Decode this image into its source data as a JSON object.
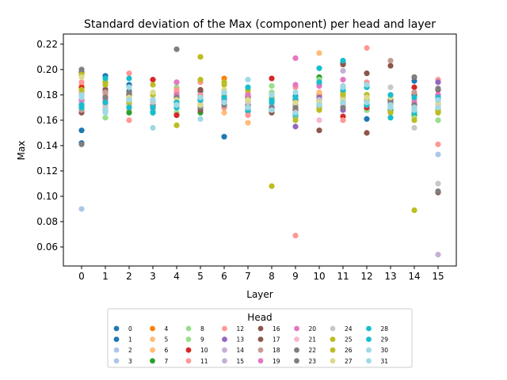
{
  "chart_data": {
    "type": "scatter",
    "title": "Standard deviation of the Max (component) per head and layer",
    "xlabel": "Layer",
    "ylabel": "Max",
    "x_categories": [
      "0",
      "1",
      "2",
      "3",
      "4",
      "5",
      "6",
      "7",
      "8",
      "9",
      "10",
      "11",
      "12",
      "13",
      "14",
      "15"
    ],
    "ylim": [
      0.045,
      0.228
    ],
    "yticks": [
      0.06,
      0.08,
      0.1,
      0.12,
      0.14,
      0.16,
      0.18,
      0.2,
      0.22
    ],
    "ytick_labels": [
      "0.06",
      "0.08",
      "0.10",
      "0.12",
      "0.14",
      "0.16",
      "0.18",
      "0.20",
      "0.22"
    ],
    "grid": false,
    "legend": {
      "title": "Head",
      "placement": "bottom-center, outside plot",
      "ncol": 8
    },
    "series": [
      {
        "name": "0",
        "color": "#1f77b4",
        "values": [
          0.152,
          0.195,
          0.188,
          0.167,
          0.178,
          0.183,
          0.147,
          0.171,
          0.17,
          0.163,
          0.17,
          0.178,
          0.161,
          0.17,
          0.191,
          0.18
        ]
      },
      {
        "name": "1",
        "color": "#1f77b4",
        "values": [
          0.142,
          0.19,
          0.183,
          0.172,
          0.174,
          0.178,
          0.18,
          0.167,
          0.176,
          0.179,
          0.172,
          0.174,
          0.168,
          0.166,
          0.168,
          0.173
        ]
      },
      {
        "name": "2",
        "color": "#aec7e8",
        "values": [
          0.09,
          0.185,
          0.18,
          0.176,
          0.172,
          0.171,
          0.176,
          0.176,
          0.172,
          0.176,
          0.176,
          0.187,
          0.173,
          0.17,
          0.163,
          0.133
        ]
      },
      {
        "name": "3",
        "color": "#aec7e8",
        "values": [
          0.174,
          0.178,
          0.178,
          0.168,
          0.176,
          0.176,
          0.182,
          0.184,
          0.174,
          0.172,
          0.178,
          0.183,
          0.177,
          0.175,
          0.17,
          0.17
        ]
      },
      {
        "name": "4",
        "color": "#ff7f0e",
        "values": [
          0.17,
          0.176,
          0.172,
          0.174,
          0.17,
          0.18,
          0.193,
          0.18,
          0.168,
          0.172,
          0.18,
          0.178,
          0.174,
          0.17,
          0.168,
          0.176
        ]
      },
      {
        "name": "5",
        "color": "#ffbb78",
        "values": [
          0.176,
          0.18,
          0.175,
          0.18,
          0.166,
          0.176,
          0.18,
          0.158,
          0.178,
          0.172,
          0.182,
          0.18,
          0.176,
          0.176,
          0.173,
          0.17
        ]
      },
      {
        "name": "6",
        "color": "#ffbb78",
        "values": [
          0.188,
          0.172,
          0.168,
          0.176,
          0.17,
          0.174,
          0.166,
          0.182,
          0.174,
          0.176,
          0.213,
          0.178,
          0.17,
          0.172,
          0.17,
          0.166
        ]
      },
      {
        "name": "7",
        "color": "#2ca02c",
        "values": [
          0.168,
          0.17,
          0.166,
          0.166,
          0.164,
          0.166,
          0.17,
          0.172,
          0.17,
          0.166,
          0.194,
          0.176,
          0.17,
          0.168,
          0.164,
          0.168
        ]
      },
      {
        "name": "8",
        "color": "#98df8a",
        "values": [
          0.172,
          0.168,
          0.172,
          0.17,
          0.166,
          0.172,
          0.172,
          0.17,
          0.187,
          0.176,
          0.176,
          0.172,
          0.168,
          0.166,
          0.162,
          0.16
        ]
      },
      {
        "name": "9",
        "color": "#98df8a",
        "values": [
          0.178,
          0.162,
          0.176,
          0.17,
          0.186,
          0.178,
          0.176,
          0.176,
          0.182,
          0.164,
          0.192,
          0.176,
          0.172,
          0.178,
          0.17,
          0.166
        ]
      },
      {
        "name": "10",
        "color": "#d62728",
        "values": [
          0.186,
          0.182,
          0.178,
          0.192,
          0.164,
          0.18,
          0.178,
          0.18,
          0.193,
          0.168,
          0.176,
          0.163,
          0.17,
          0.176,
          0.186,
          0.176
        ]
      },
      {
        "name": "11",
        "color": "#ff9896",
        "values": [
          0.19,
          0.176,
          0.197,
          0.174,
          0.184,
          0.18,
          0.17,
          0.164,
          0.174,
          0.069,
          0.174,
          0.16,
          0.217,
          0.172,
          0.176,
          0.141
        ]
      },
      {
        "name": "12",
        "color": "#ff9896",
        "values": [
          0.182,
          0.18,
          0.16,
          0.176,
          0.182,
          0.19,
          0.176,
          0.172,
          0.176,
          0.186,
          0.17,
          0.17,
          0.19,
          0.176,
          0.17,
          0.192
        ]
      },
      {
        "name": "13",
        "color": "#9467bd",
        "values": [
          0.176,
          0.178,
          0.176,
          0.174,
          0.172,
          0.178,
          0.174,
          0.174,
          0.176,
          0.155,
          0.178,
          0.168,
          0.18,
          0.174,
          0.168,
          0.19
        ]
      },
      {
        "name": "14",
        "color": "#c5b0d5",
        "values": [
          0.172,
          0.176,
          0.172,
          0.17,
          0.172,
          0.172,
          0.172,
          0.172,
          0.172,
          0.172,
          0.172,
          0.199,
          0.172,
          0.172,
          0.172,
          0.172
        ]
      },
      {
        "name": "15",
        "color": "#c5b0d5",
        "values": [
          0.174,
          0.174,
          0.174,
          0.172,
          0.174,
          0.176,
          0.176,
          0.17,
          0.17,
          0.17,
          0.17,
          0.172,
          0.174,
          0.172,
          0.17,
          0.054
        ]
      },
      {
        "name": "16",
        "color": "#8c564b",
        "values": [
          0.166,
          0.168,
          0.172,
          0.17,
          0.18,
          0.168,
          0.174,
          0.17,
          0.166,
          0.174,
          0.152,
          0.204,
          0.15,
          0.203,
          0.18,
          0.103
        ]
      },
      {
        "name": "17",
        "color": "#8c564b",
        "values": [
          0.198,
          0.184,
          0.18,
          0.174,
          0.178,
          0.184,
          0.182,
          0.178,
          0.168,
          0.176,
          0.172,
          0.205,
          0.197,
          0.176,
          0.194,
          0.184
        ]
      },
      {
        "name": "18",
        "color": "#c49c94",
        "values": [
          0.168,
          0.182,
          0.17,
          0.172,
          0.18,
          0.172,
          0.176,
          0.172,
          0.17,
          0.17,
          0.172,
          0.18,
          0.186,
          0.207,
          0.182,
          0.18
        ]
      },
      {
        "name": "19",
        "color": "#e377c2",
        "values": [
          0.18,
          0.174,
          0.176,
          0.172,
          0.19,
          0.176,
          0.176,
          0.18,
          0.176,
          0.209,
          0.187,
          0.192,
          0.188,
          0.174,
          0.174,
          0.18
        ]
      },
      {
        "name": "20",
        "color": "#e377c2",
        "values": [
          0.176,
          0.176,
          0.174,
          0.176,
          0.18,
          0.176,
          0.174,
          0.176,
          0.176,
          0.188,
          0.188,
          0.176,
          0.176,
          0.174,
          0.172,
          0.176
        ]
      },
      {
        "name": "21",
        "color": "#f7b6d2",
        "values": [
          0.172,
          0.172,
          0.176,
          0.174,
          0.172,
          0.174,
          0.172,
          0.168,
          0.172,
          0.174,
          0.16,
          0.172,
          0.172,
          0.17,
          0.17,
          0.172
        ]
      },
      {
        "name": "22",
        "color": "#7f7f7f",
        "values": [
          0.2,
          0.178,
          0.182,
          0.172,
          0.216,
          0.17,
          0.172,
          0.17,
          0.17,
          0.174,
          0.174,
          0.174,
          0.174,
          0.174,
          0.194,
          0.185
        ]
      },
      {
        "name": "23",
        "color": "#7f7f7f",
        "values": [
          0.141,
          0.174,
          0.172,
          0.17,
          0.178,
          0.172,
          0.174,
          0.172,
          0.17,
          0.17,
          0.17,
          0.17,
          0.174,
          0.172,
          0.172,
          0.104
        ]
      },
      {
        "name": "24",
        "color": "#c7c7c7",
        "values": [
          0.17,
          0.17,
          0.172,
          0.174,
          0.172,
          0.176,
          0.182,
          0.174,
          0.18,
          0.174,
          0.176,
          0.178,
          0.174,
          0.186,
          0.154,
          0.11
        ]
      },
      {
        "name": "25",
        "color": "#bcbd22",
        "values": [
          0.184,
          0.19,
          0.176,
          0.18,
          0.156,
          0.21,
          0.19,
          0.184,
          0.108,
          0.16,
          0.17,
          0.182,
          0.176,
          0.166,
          0.089,
          0.168
        ]
      },
      {
        "name": "26",
        "color": "#bcbd22",
        "values": [
          0.196,
          0.188,
          0.174,
          0.188,
          0.174,
          0.192,
          0.188,
          0.176,
          0.178,
          0.166,
          0.168,
          0.18,
          0.18,
          0.17,
          0.16,
          0.166
        ]
      },
      {
        "name": "27",
        "color": "#dbdb8d",
        "values": [
          0.194,
          0.166,
          0.178,
          0.182,
          0.176,
          0.172,
          0.184,
          0.176,
          0.176,
          0.174,
          0.174,
          0.176,
          0.178,
          0.178,
          0.17,
          0.174
        ]
      },
      {
        "name": "28",
        "color": "#17becf",
        "values": [
          0.17,
          0.193,
          0.17,
          0.166,
          0.174,
          0.176,
          0.178,
          0.168,
          0.174,
          0.165,
          0.19,
          0.184,
          0.172,
          0.162,
          0.178,
          0.178
        ]
      },
      {
        "name": "29",
        "color": "#17becf",
        "values": [
          0.172,
          0.174,
          0.193,
          0.17,
          0.17,
          0.176,
          0.178,
          0.186,
          0.176,
          0.178,
          0.201,
          0.207,
          0.186,
          0.18,
          0.166,
          0.176
        ]
      },
      {
        "name": "30",
        "color": "#9edae5",
        "values": [
          0.178,
          0.168,
          0.186,
          0.154,
          0.172,
          0.161,
          0.174,
          0.17,
          0.168,
          0.166,
          0.172,
          0.174,
          0.174,
          0.172,
          0.17,
          0.17
        ]
      },
      {
        "name": "31",
        "color": "#9edae5",
        "values": [
          0.18,
          0.166,
          0.176,
          0.176,
          0.172,
          0.178,
          0.182,
          0.192,
          0.18,
          0.182,
          0.172,
          0.186,
          0.188,
          0.17,
          0.168,
          0.176
        ]
      }
    ]
  }
}
